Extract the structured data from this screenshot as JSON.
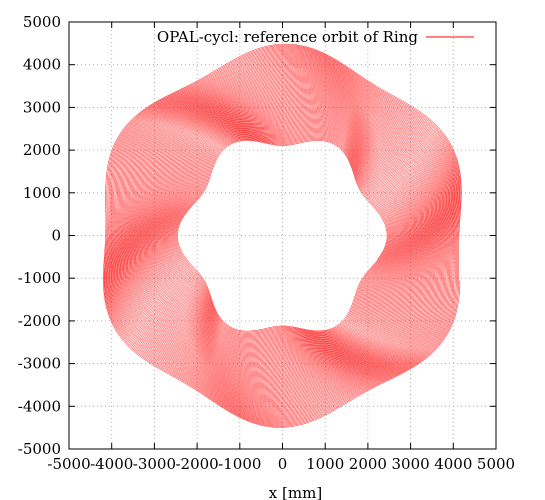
{
  "chart_data": {
    "type": "line",
    "title": "",
    "xlabel": "x [mm]",
    "ylabel": "",
    "xlim": [
      -5000,
      5000
    ],
    "ylim": [
      -5000,
      5000
    ],
    "xticks": [
      -5000,
      -4000,
      -3000,
      -2000,
      -1000,
      0,
      1000,
      2000,
      3000,
      4000,
      5000
    ],
    "yticks": [
      -5000,
      -4000,
      -3000,
      -2000,
      -1000,
      0,
      1000,
      2000,
      3000,
      4000,
      5000
    ],
    "grid": true,
    "legend_position": "top-right",
    "series": [
      {
        "name": "OPAL-cycl: reference orbit of Ring",
        "color": "#ff0000",
        "shape": "hexagonal spiral",
        "symmetry": 6,
        "inner_radius_min": 2100,
        "inner_radius_max": 2450,
        "outer_radius_min": 4150,
        "outer_radius_max": 4500,
        "turns": 90
      }
    ]
  }
}
